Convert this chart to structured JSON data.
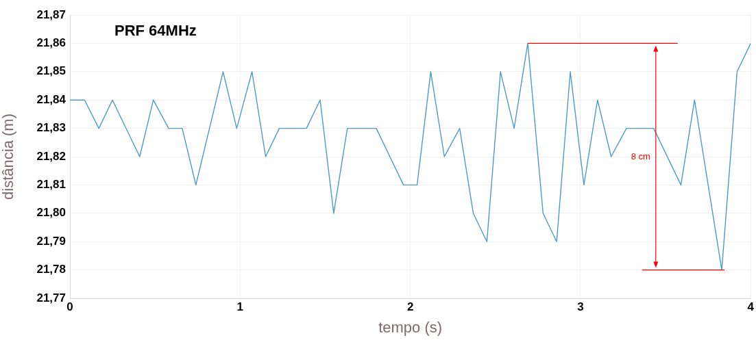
{
  "chart_data": {
    "type": "line",
    "title": "PRF 64MHz",
    "xlabel": "tempo (s)",
    "ylabel": "distância (m)",
    "x": [
      0,
      0.086,
      0.17,
      0.25,
      0.41,
      0.49,
      0.58,
      0.66,
      0.74,
      0.9,
      0.98,
      1.07,
      1.15,
      1.23,
      1.39,
      1.47,
      1.55,
      1.63,
      1.8,
      1.96,
      2.04,
      2.12,
      2.2,
      2.29,
      2.37,
      2.45,
      2.53,
      2.61,
      2.69,
      2.78,
      2.86,
      2.94,
      3.02,
      3.1,
      3.18,
      3.27,
      3.43,
      3.59,
      3.67,
      3.83,
      3.92,
      4
    ],
    "series": [
      {
        "color": "#4a9cc9",
        "values": [
          21.84,
          21.84,
          21.83,
          21.84,
          21.82,
          21.84,
          21.83,
          21.83,
          21.81,
          21.85,
          21.83,
          21.85,
          21.82,
          21.83,
          21.83,
          21.84,
          21.8,
          21.83,
          21.83,
          21.81,
          21.81,
          21.85,
          21.82,
          21.83,
          21.8,
          21.79,
          21.85,
          21.83,
          21.86,
          21.8,
          21.79,
          21.85,
          21.81,
          21.84,
          21.82,
          21.83,
          21.83,
          21.81,
          21.84,
          21.78,
          21.85,
          21.86
        ]
      }
    ],
    "xlim": [
      0,
      4
    ],
    "xticks": [
      0,
      1,
      2,
      3,
      4
    ],
    "ylim": [
      21.77,
      21.87
    ],
    "yticks": [
      {
        "value": 21.77,
        "label": "21,77"
      },
      {
        "value": 21.78,
        "label": "21,78"
      },
      {
        "value": 21.79,
        "label": "21,79"
      },
      {
        "value": 21.8,
        "label": "21,80"
      },
      {
        "value": 21.81,
        "label": "21,81"
      },
      {
        "value": 21.82,
        "label": "21,82"
      },
      {
        "value": 21.83,
        "label": "21,83"
      },
      {
        "value": 21.84,
        "label": "21,84"
      },
      {
        "value": 21.85,
        "label": "21,85"
      },
      {
        "value": 21.86,
        "label": "21,86"
      },
      {
        "value": 21.87,
        "label": "21,87"
      }
    ],
    "ref_lines": [
      {
        "axis": "y",
        "value": 21.86,
        "color": "#ff0000"
      },
      {
        "axis": "y",
        "value": 21.78,
        "color": "#ff0000"
      }
    ],
    "annotations": [
      "8 cm"
    ],
    "grid": true,
    "legend": false,
    "marker": "none",
    "line_style": "solid"
  }
}
